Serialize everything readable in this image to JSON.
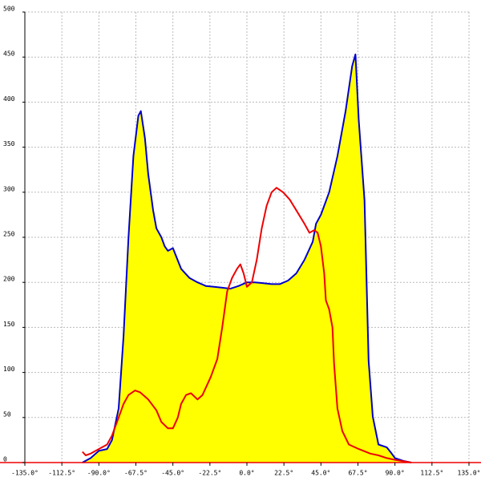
{
  "chart_data": {
    "type": "area",
    "xlim": [
      -135,
      135
    ],
    "ylim": [
      0,
      500
    ],
    "xticks": [
      {
        "value": -135,
        "label": "-135.0°"
      },
      {
        "value": -112.5,
        "label": "-112.5°"
      },
      {
        "value": -90,
        "label": "-90.0°"
      },
      {
        "value": -67.5,
        "label": "-67.5°"
      },
      {
        "value": -45,
        "label": "-45.0°"
      },
      {
        "value": -22.5,
        "label": "-22.5°"
      },
      {
        "value": 0,
        "label": "0.0°"
      },
      {
        "value": 22.5,
        "label": "22.5°"
      },
      {
        "value": 45,
        "label": "45.0°"
      },
      {
        "value": 67.5,
        "label": "67.5°"
      },
      {
        "value": 90,
        "label": "90.0°"
      },
      {
        "value": 112.5,
        "label": "112.5°"
      },
      {
        "value": 135,
        "label": "135.0°"
      }
    ],
    "yticks": [
      0,
      50,
      100,
      150,
      200,
      250,
      300,
      350,
      400,
      450,
      500
    ],
    "grid": true,
    "series": [
      {
        "color": "#0000cc",
        "fill": "#ffff00",
        "x": [
          -100,
          -95,
          -90,
          -85,
          -82,
          -78,
          -75,
          -72,
          -69,
          -66,
          -64.5,
          -62,
          -60,
          -57,
          -55,
          -52,
          -50,
          -48,
          -45,
          -40,
          -35,
          -30,
          -25,
          -20,
          -15,
          -10,
          -5,
          0,
          5,
          10,
          15,
          20,
          25,
          30,
          35,
          40,
          42,
          45,
          50,
          55,
          60,
          64,
          66,
          68,
          71.5,
          74,
          76.5,
          80,
          85,
          88,
          90,
          95,
          100
        ],
        "values": [
          0,
          5,
          13,
          15,
          25,
          60,
          140,
          250,
          340,
          385,
          390,
          360,
          320,
          280,
          260,
          250,
          240,
          235,
          238,
          215,
          205,
          200,
          196,
          195,
          194,
          193,
          196,
          200,
          200,
          199,
          198,
          198,
          202,
          210,
          225,
          245,
          265,
          275,
          300,
          340,
          390,
          440,
          453,
          380,
          291,
          113,
          51,
          20,
          17,
          10,
          5,
          2,
          0
        ]
      },
      {
        "color": "#ee0000",
        "x": [
          -100,
          -98,
          -95,
          -90,
          -85,
          -82,
          -78,
          -75,
          -72,
          -68,
          -65,
          -60,
          -55,
          -52,
          -48,
          -45,
          -42,
          -40,
          -37,
          -34,
          -30,
          -27,
          -22,
          -18,
          -15,
          -12,
          -9,
          -6,
          -4,
          -2,
          0,
          3,
          6,
          9,
          12,
          15,
          18,
          22,
          26,
          30,
          35,
          38,
          41,
          43,
          45,
          47,
          48,
          50,
          52,
          53,
          55,
          58,
          62,
          68,
          75,
          80,
          85,
          90,
          100
        ],
        "values": [
          12,
          8,
          10,
          15,
          20,
          30,
          50,
          65,
          75,
          80,
          78,
          70,
          58,
          45,
          38,
          38,
          50,
          65,
          75,
          77,
          70,
          75,
          95,
          115,
          150,
          190,
          205,
          215,
          220,
          210,
          195,
          200,
          225,
          260,
          285,
          300,
          305,
          300,
          292,
          280,
          265,
          255,
          258,
          255,
          240,
          210,
          180,
          170,
          150,
          110,
          60,
          35,
          20,
          15,
          10,
          8,
          5,
          3,
          0
        ]
      }
    ]
  }
}
